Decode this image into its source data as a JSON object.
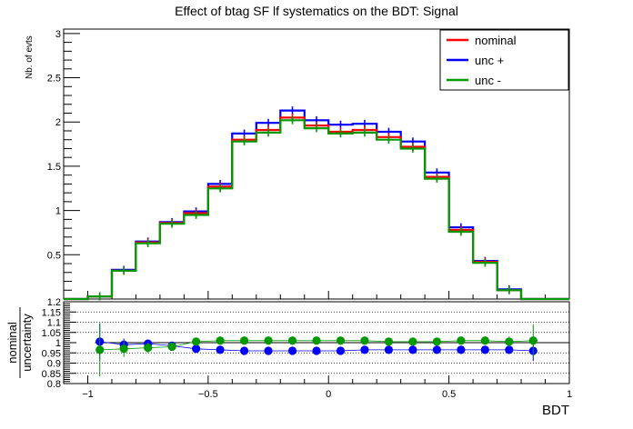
{
  "title": "Effect of btag SF lf systematics on the BDT: Signal",
  "colors": {
    "nominal": "#ff0000",
    "up": "#0000ff",
    "down": "#009900",
    "axis": "#000000"
  },
  "chart_data": [
    {
      "type": "line",
      "subtype": "step-histogram",
      "title": "Effect of btag SF lf systematics on the BDT: Signal",
      "xlabel": "",
      "ylabel": "Nb. of evts",
      "xlim": [
        -1.1,
        1.0
      ],
      "ylim": [
        0.0,
        3.05
      ],
      "y_ticks": [
        "0.5",
        "1",
        "1.5",
        "2",
        "2.5",
        "3"
      ],
      "bin_edges": [
        -1.1,
        -1.0,
        -0.9,
        -0.8,
        -0.7,
        -0.6,
        -0.5,
        -0.4,
        -0.3,
        -0.2,
        -0.1,
        0.0,
        0.1,
        0.2,
        0.3,
        0.4,
        0.5,
        0.6,
        0.7,
        0.8,
        0.9,
        1.0
      ],
      "legend_position": "top-right",
      "series": [
        {
          "name": "nominal",
          "color": "#ff0000",
          "values": [
            0.0,
            0.03,
            0.32,
            0.64,
            0.86,
            0.97,
            1.27,
            1.8,
            1.91,
            2.05,
            1.96,
            1.89,
            1.91,
            1.83,
            1.72,
            1.38,
            0.78,
            0.42,
            0.1,
            0.0,
            0.0
          ]
        },
        {
          "name": "unc +",
          "color": "#0000ff",
          "values": [
            0.0,
            0.03,
            0.33,
            0.65,
            0.87,
            0.99,
            1.3,
            1.87,
            1.99,
            2.13,
            2.02,
            1.97,
            1.98,
            1.89,
            1.78,
            1.43,
            0.81,
            0.43,
            0.11,
            0.0,
            0.0
          ]
        },
        {
          "name": "unc -",
          "color": "#009900",
          "values": [
            0.0,
            0.03,
            0.32,
            0.63,
            0.85,
            0.95,
            1.25,
            1.78,
            1.88,
            2.02,
            1.93,
            1.87,
            1.88,
            1.8,
            1.7,
            1.36,
            0.76,
            0.41,
            0.1,
            0.0,
            0.0
          ]
        }
      ]
    },
    {
      "type": "scatter",
      "title": "",
      "xlabel": "BDT",
      "ylabel": "nominal / uncertainty",
      "ylabel_top": "nominal",
      "ylabel_bottom": "uncertainty",
      "xlim": [
        -1.1,
        1.0
      ],
      "ylim": [
        0.8,
        1.2
      ],
      "x_ticks": [
        "−1",
        "−0.5",
        "0",
        "0.5",
        "1"
      ],
      "y_ticks": [
        "0.8",
        "0.85",
        "0.9",
        "0.95",
        "1",
        "1.05",
        "1.1",
        "1.15",
        "1.2"
      ],
      "reference_line": 1.0,
      "x": [
        -0.95,
        -0.85,
        -0.75,
        -0.65,
        -0.55,
        -0.45,
        -0.35,
        -0.25,
        -0.15,
        -0.05,
        0.05,
        0.15,
        0.25,
        0.35,
        0.45,
        0.55,
        0.65,
        0.75,
        0.85
      ],
      "series": [
        {
          "name": "unc +",
          "color": "#0000ff",
          "values": [
            1.005,
            0.99,
            0.995,
            0.985,
            0.97,
            0.965,
            0.96,
            0.96,
            0.96,
            0.96,
            0.96,
            0.965,
            0.965,
            0.965,
            0.965,
            0.965,
            0.965,
            0.965,
            0.96
          ],
          "errors": [
            0.09,
            0.03,
            0.02,
            0.012,
            0.01,
            0.008,
            0.006,
            0.006,
            0.005,
            0.005,
            0.005,
            0.006,
            0.006,
            0.006,
            0.006,
            0.008,
            0.012,
            0.02,
            0.05
          ]
        },
        {
          "name": "unc -",
          "color": "#009900",
          "values": [
            0.965,
            0.97,
            0.975,
            0.98,
            1.005,
            1.01,
            1.01,
            1.01,
            1.01,
            1.01,
            1.01,
            1.01,
            1.005,
            1.005,
            1.005,
            1.01,
            1.01,
            1.005,
            1.01
          ],
          "errors": [
            0.13,
            0.04,
            0.025,
            0.015,
            0.01,
            0.008,
            0.006,
            0.006,
            0.005,
            0.005,
            0.005,
            0.006,
            0.006,
            0.006,
            0.006,
            0.008,
            0.012,
            0.025,
            0.08
          ]
        }
      ]
    }
  ]
}
